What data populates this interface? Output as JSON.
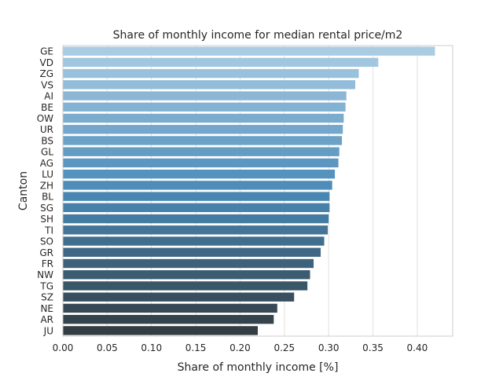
{
  "chart_data": {
    "type": "bar",
    "orientation": "horizontal",
    "title": "Share of monthly income for median rental price/m2",
    "xlabel": "Share of monthly income [%]",
    "ylabel": "Canton",
    "xlim": [
      0,
      0.44
    ],
    "xticks": [
      "0.00",
      "0.05",
      "0.10",
      "0.15",
      "0.20",
      "0.25",
      "0.30",
      "0.35",
      "0.40"
    ],
    "grid": "vertical",
    "categories": [
      "GE",
      "VD",
      "ZG",
      "VS",
      "AI",
      "BE",
      "OW",
      "UR",
      "BS",
      "GL",
      "AG",
      "LU",
      "ZH",
      "BL",
      "SG",
      "SH",
      "TI",
      "SO",
      "GR",
      "FR",
      "NW",
      "TG",
      "SZ",
      "NE",
      "AR",
      "JU"
    ],
    "values": [
      0.42,
      0.356,
      0.334,
      0.33,
      0.32,
      0.319,
      0.317,
      0.316,
      0.315,
      0.312,
      0.311,
      0.307,
      0.304,
      0.301,
      0.301,
      0.3,
      0.299,
      0.295,
      0.291,
      0.283,
      0.279,
      0.276,
      0.261,
      0.242,
      0.238,
      0.22
    ],
    "palette": "Blues_d",
    "colors": {
      "bar_start": "#a9cce3",
      "bar_mid": "#4a8ab8",
      "bar_end": "#333d44",
      "grid": "#e0e0e0",
      "frame": "#cccccc",
      "text": "#262626"
    }
  }
}
